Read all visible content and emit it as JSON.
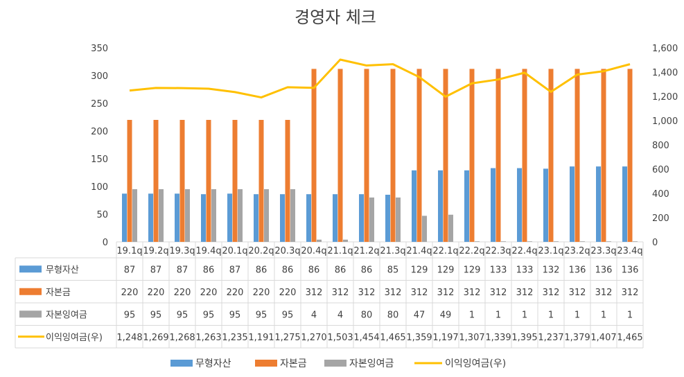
{
  "chart_data": {
    "type": "bar+line",
    "title": "경영자 체크",
    "categories": [
      "19.1q",
      "19.2q",
      "19.3q",
      "19.4q",
      "20.1q",
      "20.2q",
      "20.3q",
      "20.4q",
      "21.1q",
      "21.2q",
      "21.3q",
      "21.4q",
      "22.1q",
      "22.2q",
      "22.3q",
      "22.4q",
      "23.1q",
      "23.2q",
      "23.3q",
      "23.4q"
    ],
    "y_left": {
      "min": 0,
      "max": 350,
      "ticks": [
        "0",
        "50",
        "100",
        "150",
        "200",
        "250",
        "300",
        "350"
      ]
    },
    "y_right": {
      "min": 0,
      "max": 1600,
      "ticks": [
        "0",
        "200",
        "400",
        "600",
        "800",
        "1,000",
        "1,200",
        "1,400",
        "1,600"
      ]
    },
    "series": [
      {
        "name": "무형자산",
        "type": "bar",
        "axis": "left",
        "color": "#5B9BD5",
        "values": [
          87,
          87,
          87,
          86,
          87,
          86,
          86,
          86,
          86,
          86,
          85,
          129,
          129,
          129,
          133,
          133,
          132,
          136,
          136,
          136
        ],
        "labels": [
          "87",
          "87",
          "87",
          "86",
          "87",
          "86",
          "86",
          "86",
          "86",
          "86",
          "85",
          "129",
          "129",
          "129",
          "133",
          "133",
          "132",
          "136",
          "136",
          "136"
        ]
      },
      {
        "name": "자본금",
        "type": "bar",
        "axis": "left",
        "color": "#ED7D31",
        "values": [
          220,
          220,
          220,
          220,
          220,
          220,
          220,
          312,
          312,
          312,
          312,
          312,
          312,
          312,
          312,
          312,
          312,
          312,
          312,
          312
        ],
        "labels": [
          "220",
          "220",
          "220",
          "220",
          "220",
          "220",
          "220",
          "312",
          "312",
          "312",
          "312",
          "312",
          "312",
          "312",
          "312",
          "312",
          "312",
          "312",
          "312",
          "312"
        ]
      },
      {
        "name": "자본잉여금",
        "type": "bar",
        "axis": "left",
        "color": "#A5A5A5",
        "values": [
          95,
          95,
          95,
          95,
          95,
          95,
          95,
          4,
          4,
          80,
          80,
          47,
          49,
          1,
          1,
          1,
          1,
          1,
          1,
          1
        ],
        "labels": [
          "95",
          "95",
          "95",
          "95",
          "95",
          "95",
          "95",
          "4",
          "4",
          "80",
          "80",
          "47",
          "49",
          "1",
          "1",
          "1",
          "1",
          "1",
          "1",
          "1"
        ]
      },
      {
        "name": "이익잉여금(우)",
        "type": "line",
        "axis": "right",
        "color": "#FFC000",
        "values": [
          1248,
          1269,
          1268,
          1263,
          1235,
          1191,
          1275,
          1270,
          1503,
          1454,
          1465,
          1359,
          1197,
          1307,
          1339,
          1395,
          1237,
          1379,
          1407,
          1465
        ],
        "labels": [
          "1,248",
          "1,269",
          "1,268",
          "1,263",
          "1,235",
          "1,191",
          "1,275",
          "1,270",
          "1,503",
          "1,454",
          "1,465",
          "1,359",
          "1,197",
          "1,307",
          "1,339",
          "1,395",
          "1,237",
          "1,379",
          "1,407",
          "1,465"
        ]
      }
    ],
    "legend_position": "bottom"
  }
}
